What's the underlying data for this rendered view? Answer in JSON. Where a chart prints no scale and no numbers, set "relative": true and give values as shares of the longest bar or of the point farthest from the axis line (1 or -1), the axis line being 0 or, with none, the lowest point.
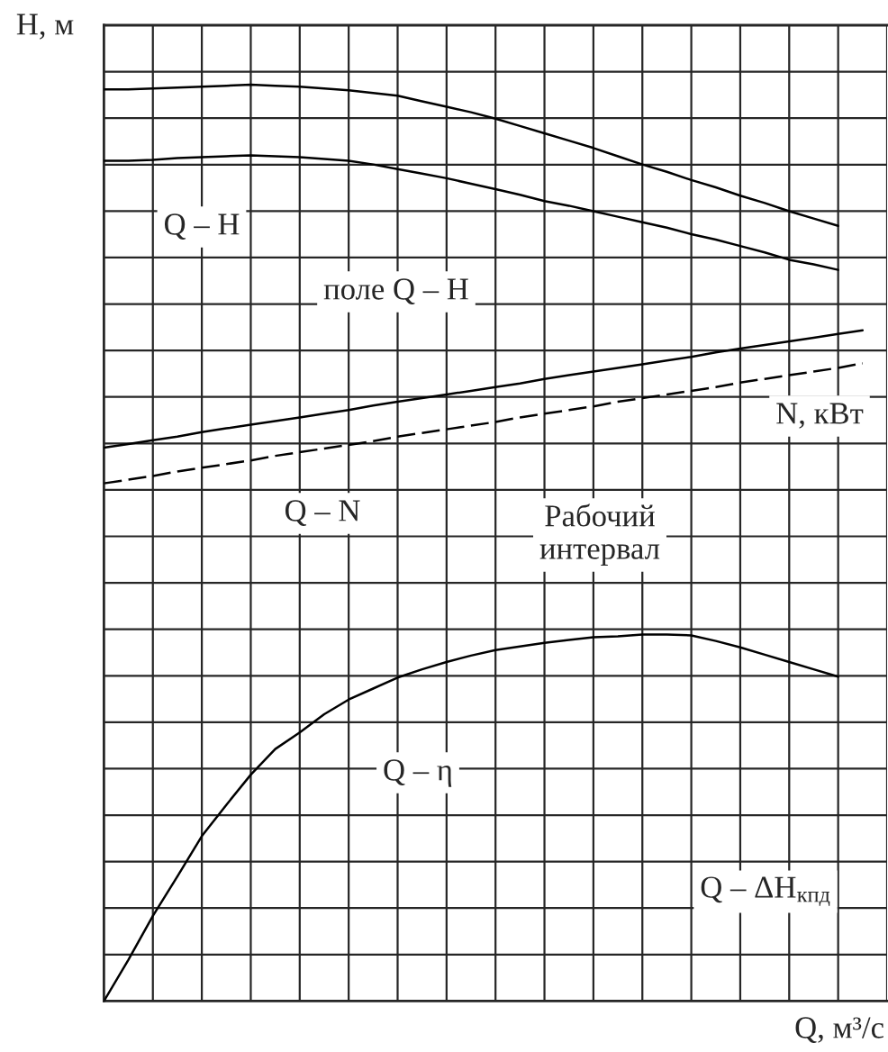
{
  "chart_data": {
    "type": "line",
    "relative": true,
    "xlabel": "Q, м³/с",
    "ylabel": "H, м",
    "categories": [
      null,
      null,
      null,
      null,
      null,
      null,
      null,
      null,
      null,
      null,
      null,
      null,
      null,
      null,
      null,
      null,
      null,
      null,
      null,
      null,
      null,
      null,
      null,
      null,
      null,
      null,
      null,
      null,
      null,
      null,
      null,
      null
    ],
    "series": [
      {
        "color": "#000000",
        "values": [
          0.995,
          0.995,
          0.996,
          0.997,
          0.998,
          0.999,
          1.0,
          0.999,
          0.998,
          0.996,
          0.994,
          0.991,
          0.988,
          0.982,
          0.976,
          0.97,
          0.963,
          0.955,
          0.947,
          0.939,
          0.931,
          0.922,
          0.913,
          0.905,
          0.896,
          0.888,
          0.879,
          0.871,
          0.862,
          0.854,
          0.846,
          null
        ]
      },
      {
        "color": "#000000",
        "values": [
          0.917,
          0.917,
          0.918,
          0.92,
          0.921,
          0.922,
          0.923,
          0.922,
          0.921,
          0.919,
          0.917,
          0.913,
          0.908,
          0.903,
          0.898,
          0.892,
          0.886,
          0.88,
          0.873,
          0.868,
          0.862,
          0.856,
          0.85,
          0.844,
          0.837,
          0.831,
          0.824,
          0.817,
          0.809,
          0.804,
          0.798,
          null
        ]
      },
      {
        "color": "#000000",
        "values": [
          0.604,
          0.608,
          0.612,
          0.616,
          0.621,
          0.625,
          0.629,
          0.633,
          0.637,
          0.641,
          0.645,
          0.65,
          0.654,
          0.658,
          0.662,
          0.666,
          0.67,
          0.674,
          0.679,
          0.683,
          0.687,
          0.691,
          0.695,
          0.699,
          0.703,
          0.708,
          0.712,
          0.716,
          0.72,
          0.724,
          0.728,
          0.732
        ]
      },
      {
        "color": "#000000",
        "line_style": "dashed",
        "values": [
          0.565,
          0.569,
          0.573,
          0.578,
          0.582,
          0.586,
          0.59,
          0.595,
          0.599,
          0.603,
          0.607,
          0.611,
          0.616,
          0.62,
          0.624,
          0.628,
          0.632,
          0.637,
          0.641,
          0.645,
          0.649,
          0.654,
          0.658,
          0.662,
          0.666,
          0.67,
          0.675,
          0.679,
          0.683,
          0.687,
          0.691,
          0.696
        ]
      },
      {
        "color": "#000000",
        "values": [
          0.0,
          0.045,
          0.093,
          0.136,
          0.18,
          0.214,
          0.247,
          0.275,
          0.293,
          0.313,
          0.329,
          0.341,
          0.353,
          0.362,
          0.37,
          0.377,
          0.383,
          0.387,
          0.391,
          0.394,
          0.397,
          0.398,
          0.4,
          0.4,
          0.399,
          0.393,
          0.386,
          0.378,
          0.37,
          0.362,
          0.354,
          null
        ]
      }
    ],
    "annotations": [
      "Q – H",
      "поле Q – H",
      "N, кВт",
      "Q – N",
      "Рабочий\nинтервал",
      "Q – η",
      "Q – ΔH$_{кпд}$"
    ],
    "grid": true,
    "marker": "none",
    "line_style": "solid"
  }
}
